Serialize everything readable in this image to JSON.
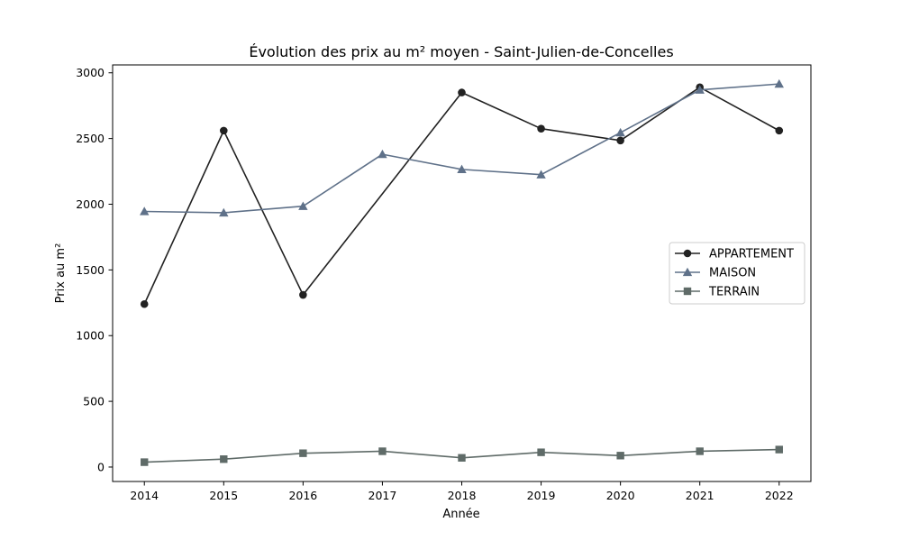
{
  "chart_data": {
    "type": "line",
    "title": "Évolution des prix au m² moyen - Saint-Julien-de-Concelles",
    "xlabel": "Année",
    "ylabel": "Prix au m²",
    "x": [
      2014,
      2015,
      2016,
      2017,
      2018,
      2019,
      2020,
      2021,
      2022
    ],
    "xlim": [
      2013.6,
      2022.4
    ],
    "ylim": [
      -110,
      3060
    ],
    "yticks": [
      0,
      500,
      1000,
      1500,
      2000,
      2500,
      3000
    ],
    "grid": false,
    "legend": "center-right",
    "series": [
      {
        "name": "APPARTEMENT",
        "color": "#222222",
        "marker": "circle",
        "values": [
          1240,
          2560,
          1310,
          2080,
          2850,
          2575,
          2485,
          2890,
          2560
        ],
        "markers": [
          true,
          true,
          true,
          false,
          true,
          true,
          true,
          true,
          true
        ]
      },
      {
        "name": "MAISON",
        "color": "#5f7189",
        "marker": "triangle",
        "values": [
          1945,
          1935,
          1985,
          2380,
          2265,
          2225,
          2545,
          2870,
          2915
        ],
        "markers": [
          true,
          true,
          true,
          true,
          true,
          true,
          true,
          true,
          true
        ]
      },
      {
        "name": "TERRAIN",
        "color": "#5f6b68",
        "marker": "square",
        "values": [
          37,
          60,
          105,
          120,
          70,
          112,
          87,
          120,
          133
        ],
        "markers": [
          true,
          true,
          true,
          true,
          true,
          true,
          true,
          true,
          true
        ]
      }
    ]
  }
}
